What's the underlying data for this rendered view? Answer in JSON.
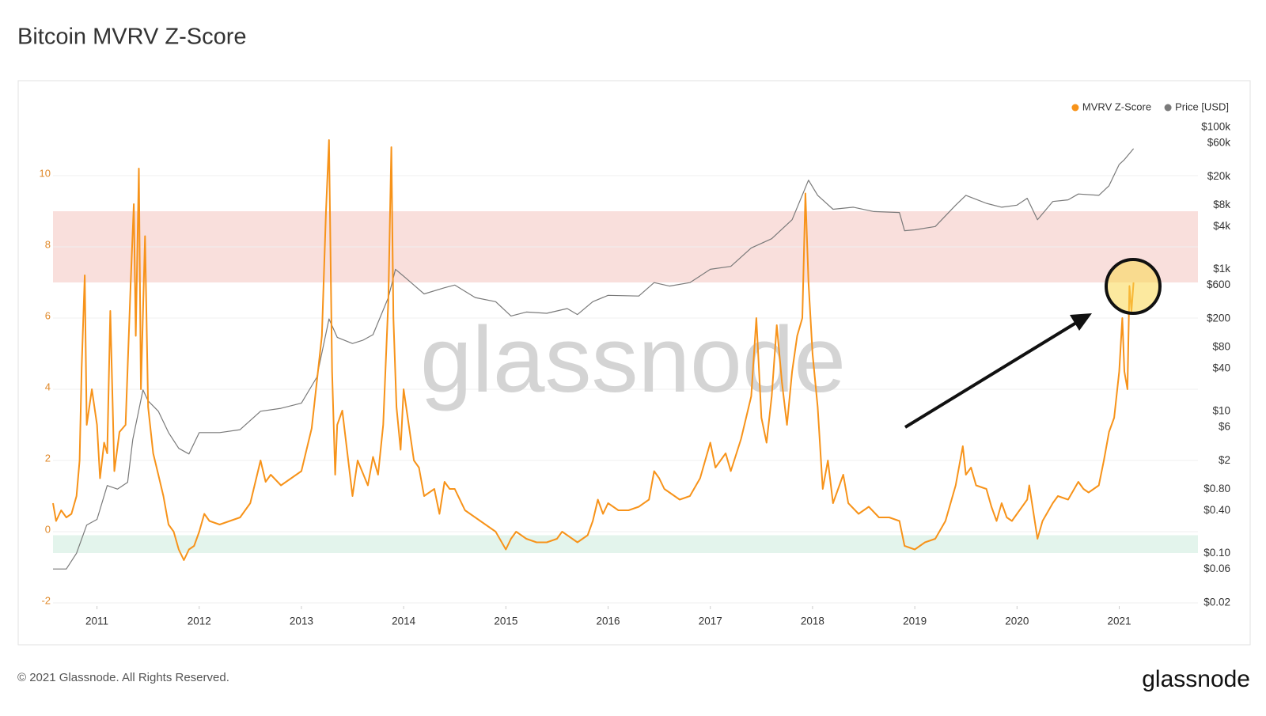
{
  "chart_data": {
    "type": "line",
    "title": "Bitcoin MVRV Z-Score",
    "watermark": "glassnode",
    "xlim": [
      2010.57,
      2021.77
    ],
    "xticks": [
      2011,
      2012,
      2013,
      2014,
      2015,
      2016,
      2017,
      2018,
      2019,
      2020,
      2021
    ],
    "ylim": [
      -2,
      12
    ],
    "yticks": [
      -2,
      0,
      2,
      4,
      6,
      8,
      10
    ],
    "y2lim": [
      0.02,
      210000
    ],
    "y2log": true,
    "y2ticks": [
      {
        "value": 100000,
        "label": "$100k"
      },
      {
        "value": 60000,
        "label": "$60k"
      },
      {
        "value": 20000,
        "label": "$20k"
      },
      {
        "value": 8000,
        "label": "$8k"
      },
      {
        "value": 4000,
        "label": "$4k"
      },
      {
        "value": 1000,
        "label": "$1k"
      },
      {
        "value": 600,
        "label": "$600"
      },
      {
        "value": 200,
        "label": "$200"
      },
      {
        "value": 80,
        "label": "$80"
      },
      {
        "value": 40,
        "label": "$40"
      },
      {
        "value": 10,
        "label": "$10"
      },
      {
        "value": 6,
        "label": "$6"
      },
      {
        "value": 2,
        "label": "$2"
      },
      {
        "value": 0.8,
        "label": "$0.80"
      },
      {
        "value": 0.4,
        "label": "$0.40"
      },
      {
        "value": 0.1,
        "label": "$0.10"
      },
      {
        "value": 0.06,
        "label": "$0.06"
      },
      {
        "value": 0.02,
        "label": "$0.02"
      }
    ],
    "grid": true,
    "legend": "top-right",
    "bands": [
      {
        "from": 7,
        "to": 9,
        "color": "#f9dfdc"
      },
      {
        "from": -0.6,
        "to": -0.1,
        "color": "#e3f4ec"
      }
    ],
    "series": [
      {
        "name": "MVRV Z-Score",
        "color": "#f7931a",
        "axis": "y",
        "x": [
          2010.57,
          2010.6,
          2010.65,
          2010.7,
          2010.75,
          2010.8,
          2010.83,
          2010.85,
          2010.88,
          2010.9,
          2010.95,
          2011.0,
          2011.03,
          2011.07,
          2011.1,
          2011.13,
          2011.17,
          2011.22,
          2011.28,
          2011.33,
          2011.36,
          2011.38,
          2011.41,
          2011.43,
          2011.47,
          2011.5,
          2011.55,
          2011.6,
          2011.65,
          2011.7,
          2011.75,
          2011.8,
          2011.85,
          2011.9,
          2011.95,
          2012.0,
          2012.05,
          2012.1,
          2012.2,
          2012.3,
          2012.4,
          2012.5,
          2012.6,
          2012.65,
          2012.7,
          2012.8,
          2012.9,
          2013.0,
          2013.1,
          2013.2,
          2013.24,
          2013.27,
          2013.3,
          2013.33,
          2013.35,
          2013.4,
          2013.5,
          2013.55,
          2013.65,
          2013.7,
          2013.75,
          2013.8,
          2013.85,
          2013.88,
          2013.9,
          2013.93,
          2013.97,
          2014.0,
          2014.05,
          2014.1,
          2014.15,
          2014.2,
          2014.3,
          2014.35,
          2014.4,
          2014.45,
          2014.5,
          2014.6,
          2014.7,
          2014.8,
          2014.9,
          2015.0,
          2015.05,
          2015.1,
          2015.2,
          2015.3,
          2015.4,
          2015.5,
          2015.55,
          2015.6,
          2015.7,
          2015.8,
          2015.85,
          2015.9,
          2015.95,
          2016.0,
          2016.1,
          2016.2,
          2016.3,
          2016.4,
          2016.45,
          2016.5,
          2016.55,
          2016.6,
          2016.7,
          2016.8,
          2016.9,
          2017.0,
          2017.05,
          2017.15,
          2017.2,
          2017.3,
          2017.4,
          2017.45,
          2017.5,
          2017.55,
          2017.6,
          2017.65,
          2017.7,
          2017.75,
          2017.8,
          2017.85,
          2017.9,
          2017.93,
          2017.96,
          2018.0,
          2018.05,
          2018.1,
          2018.15,
          2018.2,
          2018.3,
          2018.35,
          2018.45,
          2018.55,
          2018.65,
          2018.75,
          2018.85,
          2018.9,
          2019.0,
          2019.1,
          2019.2,
          2019.3,
          2019.4,
          2019.47,
          2019.5,
          2019.55,
          2019.6,
          2019.7,
          2019.75,
          2019.8,
          2019.85,
          2019.9,
          2019.95,
          2020.0,
          2020.1,
          2020.12,
          2020.2,
          2020.25,
          2020.35,
          2020.4,
          2020.5,
          2020.6,
          2020.65,
          2020.7,
          2020.8,
          2020.85,
          2020.9,
          2020.95,
          2021.0,
          2021.03,
          2021.05,
          2021.08,
          2021.1,
          2021.12,
          2021.14
        ],
        "values": [
          0.8,
          0.3,
          0.6,
          0.4,
          0.5,
          1.0,
          2.0,
          4.6,
          7.2,
          3.0,
          4.0,
          3.0,
          1.5,
          2.5,
          2.2,
          6.2,
          1.7,
          2.8,
          3.0,
          7.0,
          9.2,
          5.5,
          10.2,
          4.0,
          8.3,
          3.5,
          2.2,
          1.6,
          1.0,
          0.2,
          0.0,
          -0.5,
          -0.8,
          -0.5,
          -0.4,
          0.0,
          0.5,
          0.3,
          0.2,
          0.3,
          0.4,
          0.8,
          2.0,
          1.4,
          1.6,
          1.3,
          1.5,
          1.7,
          2.9,
          5.5,
          9.0,
          11.0,
          4.5,
          1.6,
          3.0,
          3.4,
          1.0,
          2.0,
          1.3,
          2.1,
          1.6,
          3.0,
          6.5,
          10.8,
          6.0,
          3.5,
          2.3,
          4.0,
          3.0,
          2.0,
          1.8,
          1.0,
          1.2,
          0.5,
          1.4,
          1.2,
          1.2,
          0.6,
          0.4,
          0.2,
          0.0,
          -0.5,
          -0.2,
          0.0,
          -0.2,
          -0.3,
          -0.3,
          -0.2,
          0.0,
          -0.1,
          -0.3,
          -0.1,
          0.3,
          0.9,
          0.5,
          0.8,
          0.6,
          0.6,
          0.7,
          0.9,
          1.7,
          1.5,
          1.2,
          1.1,
          0.9,
          1.0,
          1.5,
          2.5,
          1.8,
          2.2,
          1.7,
          2.6,
          3.8,
          6.0,
          3.2,
          2.5,
          3.8,
          5.8,
          4.2,
          3.0,
          4.5,
          5.5,
          6.0,
          9.5,
          7.0,
          5.0,
          3.5,
          1.2,
          2.0,
          0.8,
          1.6,
          0.8,
          0.5,
          0.7,
          0.4,
          0.4,
          0.3,
          -0.4,
          -0.5,
          -0.3,
          -0.2,
          0.3,
          1.3,
          2.4,
          1.6,
          1.8,
          1.3,
          1.2,
          0.7,
          0.3,
          0.8,
          0.4,
          0.3,
          0.5,
          0.9,
          1.3,
          -0.2,
          0.3,
          0.8,
          1.0,
          0.9,
          1.4,
          1.2,
          1.1,
          1.3,
          2.0,
          2.8,
          3.2,
          4.5,
          6.0,
          4.5,
          4.0,
          6.9,
          6.2,
          7.0
        ]
      },
      {
        "name": "Price [USD]",
        "color": "#7a7a7a",
        "axis": "y2",
        "x": [
          2010.57,
          2010.7,
          2010.8,
          2010.9,
          2011.0,
          2011.1,
          2011.2,
          2011.3,
          2011.35,
          2011.45,
          2011.5,
          2011.6,
          2011.7,
          2011.8,
          2011.9,
          2012.0,
          2012.2,
          2012.4,
          2012.6,
          2012.8,
          2013.0,
          2013.15,
          2013.27,
          2013.35,
          2013.5,
          2013.6,
          2013.7,
          2013.85,
          2013.92,
          2014.0,
          2014.1,
          2014.2,
          2014.4,
          2014.5,
          2014.7,
          2014.9,
          2015.05,
          2015.2,
          2015.4,
          2015.6,
          2015.7,
          2015.85,
          2016.0,
          2016.3,
          2016.45,
          2016.6,
          2016.8,
          2017.0,
          2017.2,
          2017.4,
          2017.6,
          2017.8,
          2017.96,
          2018.05,
          2018.2,
          2018.4,
          2018.6,
          2018.85,
          2018.9,
          2019.0,
          2019.2,
          2019.4,
          2019.5,
          2019.7,
          2019.85,
          2020.0,
          2020.1,
          2020.2,
          2020.35,
          2020.5,
          2020.6,
          2020.8,
          2020.9,
          2021.0,
          2021.05,
          2021.14
        ],
        "values": [
          0.06,
          0.06,
          0.1,
          0.25,
          0.3,
          0.9,
          0.8,
          1.0,
          4,
          20,
          14,
          10,
          5,
          3,
          2.5,
          5,
          5,
          5.5,
          10,
          11,
          13,
          30,
          200,
          110,
          90,
          100,
          120,
          400,
          1000,
          800,
          600,
          450,
          550,
          600,
          400,
          350,
          220,
          250,
          240,
          280,
          230,
          350,
          430,
          420,
          650,
          580,
          650,
          1000,
          1100,
          2000,
          2700,
          5000,
          18000,
          11000,
          7000,
          7500,
          6500,
          6300,
          3500,
          3600,
          4000,
          8000,
          11000,
          8500,
          7500,
          8000,
          10000,
          5000,
          9000,
          9500,
          11500,
          11000,
          15000,
          30000,
          35000,
          50000
        ]
      }
    ]
  },
  "footer": {
    "copyright": "© 2021 Glassnode. All Rights Reserved.",
    "logo": "glassnode"
  }
}
